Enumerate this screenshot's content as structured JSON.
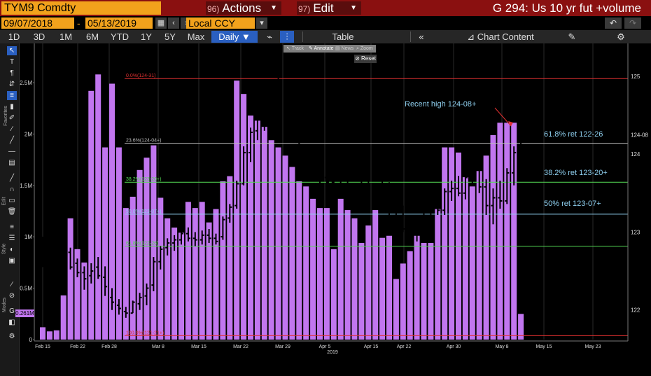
{
  "header": {
    "ticker": "TYM9 Comdty",
    "actions_num": "96)",
    "actions_label": "Actions",
    "edit_num": "97)",
    "edit_label": "Edit",
    "chart_title": "G 294: Us 10 yr fut +volume"
  },
  "dates": {
    "start": "09/07/2018",
    "end": "05/13/2019",
    "currency": "Local CCY"
  },
  "toolbar": {
    "ranges": [
      "1D",
      "3D",
      "1M",
      "6M",
      "YTD",
      "1Y",
      "5Y",
      "Max"
    ],
    "frequency": "Daily",
    "table_label": "Table",
    "chart_content_label": "Chart Content"
  },
  "mini_toolbar": {
    "items": [
      "Track",
      "Annotate",
      "News",
      "Zoom"
    ],
    "reset_label": "Reset"
  },
  "left_labels": {
    "favorites": "Favorites",
    "edit": "Edit",
    "style": "Style",
    "modes": "Modes",
    "volume_badge": "0.261M"
  },
  "colors": {
    "volume": "#c176ef",
    "price": "#ffffff",
    "fib_0": "#e03030",
    "fib_236": "#bbbbbb",
    "fib_382": "#55dd55",
    "fib_50": "#8fd0f0",
    "fib_618": "#55dd55",
    "annotation": "#8fd0f0",
    "arrow": "#e03030"
  },
  "chart_data": {
    "type": "bar",
    "x": [
      "Feb 15",
      "Feb 22",
      "Feb 28",
      "Mar 8",
      "Mar 15",
      "Mar 22",
      "Mar 29",
      "Apr 5",
      "Apr 15",
      "Apr 22",
      "Apr 30",
      "May 8",
      "May 15",
      "May 23"
    ],
    "x_year_label": "2019",
    "volume_axis_labels": [
      "0",
      "0.5M",
      "1M",
      "1.5M",
      "2M",
      "2.5M"
    ],
    "price_axis_labels": [
      "122",
      "123",
      "124",
      "124-08",
      "125"
    ],
    "volume_millions": [
      0.12,
      0.08,
      0.09,
      0.43,
      1.18,
      0.88,
      0.75,
      2.42,
      2.58,
      1.87,
      2.49,
      1.87,
      1.28,
      1.39,
      1.65,
      1.77,
      1.89,
      1.38,
      1.18,
      1.09,
      1.04,
      1.34,
      1.28,
      1.34,
      1.14,
      1.27,
      1.54,
      1.59,
      2.52,
      2.39,
      2.18,
      2.13,
      2.07,
      1.94,
      1.87,
      1.79,
      1.68,
      1.54,
      1.49,
      1.37,
      1.28,
      1.28,
      0.88,
      1.37,
      1.26,
      1.18,
      0.94,
      1.11,
      1.26,
      0.99,
      1.01,
      0.59,
      0.74,
      0.86,
      1.01,
      0.94,
      0.94,
      1.27,
      1.87,
      1.87,
      1.82,
      1.58,
      1.49,
      1.64,
      1.79,
      1.99,
      2.11,
      2.11,
      2.11,
      0.25
    ],
    "price_ohlc": [
      [
        122.78,
        122.94,
        122.55,
        122.86
      ],
      [
        122.72,
        122.78,
        122.56,
        122.64
      ],
      [
        122.84,
        122.94,
        122.76,
        122.88
      ],
      [
        122.88,
        122.92,
        122.72,
        122.76
      ],
      [
        122.74,
        122.8,
        122.52,
        122.55
      ],
      [
        122.6,
        122.66,
        122.42,
        122.48
      ],
      [
        122.48,
        122.56,
        122.26,
        122.4
      ],
      [
        122.44,
        122.6,
        122.34,
        122.5
      ],
      [
        122.55,
        122.68,
        122.4,
        122.44
      ],
      [
        122.42,
        122.56,
        122.18,
        122.3
      ],
      [
        122.16,
        122.28,
        122.0,
        122.1
      ],
      [
        122.06,
        122.14,
        121.94,
        122.02
      ],
      [
        121.98,
        122.04,
        121.9,
        121.96
      ],
      [
        121.96,
        122.12,
        121.96,
        122.1
      ],
      [
        122.08,
        122.22,
        122.0,
        122.16
      ],
      [
        122.18,
        122.34,
        122.06,
        122.28
      ],
      [
        122.32,
        122.68,
        122.24,
        122.62
      ],
      [
        122.62,
        122.82,
        122.52,
        122.78
      ],
      [
        122.8,
        122.92,
        122.7,
        122.86
      ],
      [
        122.86,
        122.96,
        122.76,
        122.9
      ],
      [
        122.9,
        123.04,
        122.84,
        122.98
      ],
      [
        122.98,
        123.06,
        122.88,
        122.92
      ],
      [
        122.92,
        123.0,
        122.82,
        122.9
      ],
      [
        122.9,
        123.02,
        122.84,
        122.96
      ],
      [
        122.96,
        123.04,
        122.86,
        122.92
      ],
      [
        122.92,
        122.98,
        122.84,
        122.88
      ],
      [
        122.94,
        123.2,
        122.9,
        123.16
      ],
      [
        123.18,
        123.36,
        123.12,
        123.32
      ],
      [
        123.34,
        123.66,
        123.3,
        123.62
      ],
      [
        123.62,
        124.1,
        123.6,
        124.02
      ],
      [
        124.02,
        124.34,
        123.9,
        124.28
      ],
      [
        124.3,
        124.66,
        124.18,
        124.58
      ],
      [
        124.52,
        124.7,
        124.3,
        124.42
      ],
      [
        124.46,
        124.88,
        124.38,
        124.8
      ],
      [
        124.8,
        125.0,
        124.52,
        124.6
      ],
      [
        124.6,
        124.76,
        124.38,
        124.44
      ],
      [
        124.44,
        124.56,
        124.16,
        124.22
      ],
      [
        124.22,
        124.34,
        123.92,
        123.98
      ],
      [
        123.98,
        124.08,
        123.7,
        123.82
      ],
      [
        123.82,
        123.94,
        123.66,
        123.76
      ],
      [
        123.76,
        123.86,
        123.62,
        123.74
      ],
      [
        123.7,
        123.82,
        123.56,
        123.64
      ],
      [
        123.64,
        123.78,
        123.52,
        123.72
      ],
      [
        123.72,
        123.84,
        123.6,
        123.7
      ],
      [
        123.66,
        123.76,
        123.42,
        123.48
      ],
      [
        123.46,
        123.58,
        123.3,
        123.5
      ],
      [
        123.52,
        123.7,
        123.48,
        123.66
      ],
      [
        123.66,
        123.88,
        123.58,
        123.84
      ],
      [
        123.84,
        123.92,
        123.7,
        123.76
      ],
      [
        123.76,
        123.84,
        123.52,
        123.58
      ],
      [
        123.56,
        123.64,
        123.02,
        123.1
      ],
      [
        123.1,
        123.24,
        122.98,
        123.12
      ],
      [
        123.12,
        123.34,
        123.0,
        123.04
      ],
      [
        123.06,
        123.18,
        122.92,
        123.0
      ],
      [
        123.0,
        123.12,
        122.88,
        123.06
      ],
      [
        123.06,
        123.24,
        122.98,
        123.2
      ],
      [
        123.2,
        123.38,
        123.14,
        123.32
      ],
      [
        123.32,
        123.44,
        123.22,
        123.28
      ],
      [
        123.28,
        123.56,
        123.22,
        123.52
      ],
      [
        123.52,
        123.66,
        123.4,
        123.56
      ],
      [
        123.56,
        123.72,
        123.46,
        123.5
      ],
      [
        123.5,
        123.72,
        123.42,
        123.7
      ],
      [
        123.7,
        124.0,
        123.6,
        123.9
      ],
      [
        123.9,
        123.96,
        123.5,
        123.58
      ],
      [
        123.58,
        123.68,
        123.22,
        123.34
      ],
      [
        123.34,
        123.56,
        123.1,
        123.44
      ],
      [
        123.44,
        123.66,
        123.3,
        123.4
      ],
      [
        123.4,
        123.82,
        123.36,
        123.76
      ],
      [
        123.76,
        124.1,
        123.6,
        124.02
      ],
      [
        124.02,
        124.26,
        123.72,
        124.18
      ]
    ],
    "fib_levels": [
      {
        "label": "0.0%(124-31)",
        "price": 124.97
      },
      {
        "label": "23.6%(124-04+)",
        "price": 124.14
      },
      {
        "label": "38.2%(123-20+)",
        "price": 123.64
      },
      {
        "label": "50.0%(123-07+)",
        "price": 123.23
      },
      {
        "label": "61.8%(122-26)",
        "price": 122.82
      },
      {
        "label": "100.0%(121-21+)",
        "price": 121.67
      }
    ],
    "annotations": [
      {
        "text": "Recent high 124-08+"
      },
      {
        "text": "61.8% ret 122-26"
      },
      {
        "text": "38.2% ret 123-20+"
      },
      {
        "text": "50% ret 123-07+"
      }
    ],
    "ylim_volume": [
      0,
      2.8
    ],
    "ylim_price": [
      121.62,
      125.08
    ]
  }
}
